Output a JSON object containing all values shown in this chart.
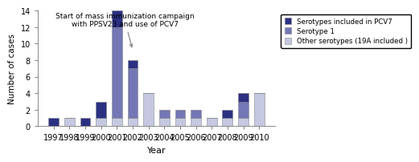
{
  "years": [
    1997,
    1998,
    1999,
    2000,
    2001,
    2002,
    2003,
    2004,
    2005,
    2006,
    2007,
    2008,
    2009,
    2010
  ],
  "pcv7": [
    1,
    0,
    1,
    2,
    2,
    1,
    0,
    0,
    0,
    0,
    0,
    1,
    1,
    0
  ],
  "serotype1": [
    0,
    0,
    0,
    0,
    11,
    6,
    0,
    1,
    1,
    1,
    0,
    0,
    2,
    0
  ],
  "other": [
    0,
    1,
    0,
    1,
    1,
    1,
    4,
    1,
    1,
    1,
    1,
    1,
    1,
    4
  ],
  "color_pcv7": "#2b3082",
  "color_serotype1": "#7377b5",
  "color_other": "#c5c8e0",
  "ylabel": "Number of cases",
  "xlabel": "Year",
  "ylim": [
    0,
    14
  ],
  "yticks": [
    0,
    2,
    4,
    6,
    8,
    10,
    12,
    14
  ],
  "legend_labels": [
    "Serotypes included in PCV7",
    "Serotype 1",
    "Other serotypes (19A included )"
  ],
  "annotation_text": "Start of mass immunization campaign\nwith PPSV23 and use of PCV7",
  "bar_width": 0.65
}
